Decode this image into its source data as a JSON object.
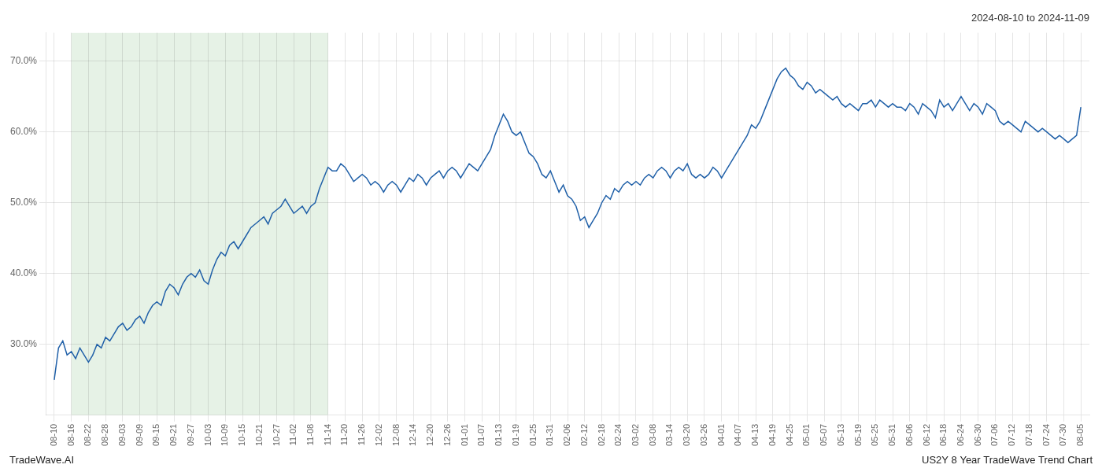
{
  "chart_data": {
    "type": "line",
    "title": "2024-08-10 to 2024-11-09",
    "annotations": [
      "TradeWave.AI",
      "US2Y 8 Year TradeWave Trend Chart"
    ],
    "color": "#2060a8",
    "grid": true,
    "shade": {
      "from": "08-16",
      "to": "11-14",
      "color": "#d6ead6"
    },
    "ylim": [
      20,
      74
    ],
    "yticks": [
      {
        "value": 30,
        "label": "30.0%"
      },
      {
        "value": 40,
        "label": "40.0%"
      },
      {
        "value": 50,
        "label": "50.0%"
      },
      {
        "value": 60,
        "label": "60.0%"
      },
      {
        "value": 70,
        "label": "70.0%"
      }
    ],
    "categories": [
      "08-10",
      null,
      null,
      null,
      "08-16",
      null,
      null,
      null,
      "08-22",
      null,
      null,
      null,
      "08-28",
      null,
      null,
      null,
      "09-03",
      null,
      null,
      null,
      "09-09",
      null,
      null,
      null,
      "09-15",
      null,
      null,
      null,
      "09-21",
      null,
      null,
      null,
      "09-27",
      null,
      null,
      null,
      "10-03",
      null,
      null,
      null,
      "10-09",
      null,
      null,
      null,
      "10-15",
      null,
      null,
      null,
      "10-21",
      null,
      null,
      null,
      "10-27",
      null,
      null,
      null,
      "11-02",
      null,
      null,
      null,
      "11-08",
      null,
      null,
      null,
      "11-14",
      null,
      null,
      null,
      "11-20",
      null,
      null,
      null,
      "11-26",
      null,
      null,
      null,
      "12-02",
      null,
      null,
      null,
      "12-08",
      null,
      null,
      null,
      "12-14",
      null,
      null,
      null,
      "12-20",
      null,
      null,
      null,
      "12-26",
      null,
      null,
      null,
      "01-01",
      null,
      null,
      null,
      "01-07",
      null,
      null,
      null,
      "01-13",
      null,
      null,
      null,
      "01-19",
      null,
      null,
      null,
      "01-25",
      null,
      null,
      null,
      "01-31",
      null,
      null,
      null,
      "02-06",
      null,
      null,
      null,
      "02-12",
      null,
      null,
      null,
      "02-18",
      null,
      null,
      null,
      "02-24",
      null,
      null,
      null,
      "03-02",
      null,
      null,
      null,
      "03-08",
      null,
      null,
      null,
      "03-14",
      null,
      null,
      null,
      "03-20",
      null,
      null,
      null,
      "03-26",
      null,
      null,
      null,
      "04-01",
      null,
      null,
      null,
      "04-07",
      null,
      null,
      null,
      "04-13",
      null,
      null,
      null,
      "04-19",
      null,
      null,
      null,
      "04-25",
      null,
      null,
      null,
      "05-01",
      null,
      null,
      null,
      "05-07",
      null,
      null,
      null,
      "05-13",
      null,
      null,
      null,
      "05-19",
      null,
      null,
      null,
      "05-25",
      null,
      null,
      null,
      "05-31",
      null,
      null,
      null,
      "06-06",
      null,
      null,
      null,
      "06-12",
      null,
      null,
      null,
      "06-18",
      null,
      null,
      null,
      "06-24",
      null,
      null,
      null,
      "06-30",
      null,
      null,
      null,
      "07-06",
      null,
      null,
      null,
      "07-12",
      null,
      null,
      null,
      "07-18",
      null,
      null,
      null,
      "07-24",
      null,
      null,
      null,
      "07-30",
      null,
      null,
      null,
      "08-05"
    ],
    "values": [
      25.0,
      29.5,
      30.5,
      28.5,
      29.0,
      28.0,
      29.5,
      28.5,
      27.5,
      28.5,
      30.0,
      29.5,
      31.0,
      30.5,
      31.5,
      32.5,
      33.0,
      32.0,
      32.5,
      33.5,
      34.0,
      33.0,
      34.5,
      35.5,
      36.0,
      35.5,
      37.5,
      38.5,
      38.0,
      37.0,
      38.5,
      39.5,
      40.0,
      39.5,
      40.5,
      39.0,
      38.5,
      40.5,
      42.0,
      43.0,
      42.5,
      44.0,
      44.5,
      43.5,
      44.5,
      45.5,
      46.5,
      47.0,
      47.5,
      48.0,
      47.0,
      48.5,
      49.0,
      49.5,
      50.5,
      49.5,
      48.5,
      49.0,
      49.5,
      48.5,
      49.5,
      50.0,
      52.0,
      53.5,
      55.0,
      54.5,
      54.5,
      55.5,
      55.0,
      54.0,
      53.0,
      53.5,
      54.0,
      53.5,
      52.5,
      53.0,
      52.5,
      51.5,
      52.5,
      53.0,
      52.5,
      51.5,
      52.5,
      53.5,
      53.0,
      54.0,
      53.5,
      52.5,
      53.5,
      54.0,
      54.5,
      53.5,
      54.5,
      55.0,
      54.5,
      53.5,
      54.5,
      55.5,
      55.0,
      54.5,
      55.5,
      56.5,
      57.5,
      59.5,
      61.0,
      62.5,
      61.5,
      60.0,
      59.5,
      60.0,
      58.5,
      57.0,
      56.5,
      55.5,
      54.0,
      53.5,
      54.5,
      53.0,
      51.5,
      52.5,
      51.0,
      50.5,
      49.5,
      47.5,
      48.0,
      46.5,
      47.5,
      48.5,
      50.0,
      51.0,
      50.5,
      52.0,
      51.5,
      52.5,
      53.0,
      52.5,
      53.0,
      52.5,
      53.5,
      54.0,
      53.5,
      54.5,
      55.0,
      54.5,
      53.5,
      54.5,
      55.0,
      54.5,
      55.5,
      54.0,
      53.5,
      54.0,
      53.5,
      54.0,
      55.0,
      54.5,
      53.5,
      54.5,
      55.5,
      56.5,
      57.5,
      58.5,
      59.5,
      61.0,
      60.5,
      61.5,
      63.0,
      64.5,
      66.0,
      67.5,
      68.5,
      69.0,
      68.0,
      67.5,
      66.5,
      66.0,
      67.0,
      66.5,
      65.5,
      66.0,
      65.5,
      65.0,
      64.5,
      65.0,
      64.0,
      63.5,
      64.0,
      63.5,
      63.0,
      64.0,
      64.0,
      64.5,
      63.5,
      64.5,
      64.0,
      63.5,
      64.0,
      63.5,
      63.5,
      63.0,
      64.0,
      63.5,
      62.5,
      64.0,
      63.5,
      63.0,
      62.0,
      64.5,
      63.5,
      64.0,
      63.0,
      64.0,
      65.0,
      64.0,
      63.0,
      64.0,
      63.5,
      62.5,
      64.0,
      63.5,
      63.0,
      61.5,
      61.0,
      61.5,
      61.0,
      60.5,
      60.0,
      61.5,
      61.0,
      60.5,
      60.0,
      60.5,
      60.0,
      59.5,
      59.0,
      59.5,
      59.0,
      58.5,
      59.0,
      59.5,
      63.5
    ]
  }
}
